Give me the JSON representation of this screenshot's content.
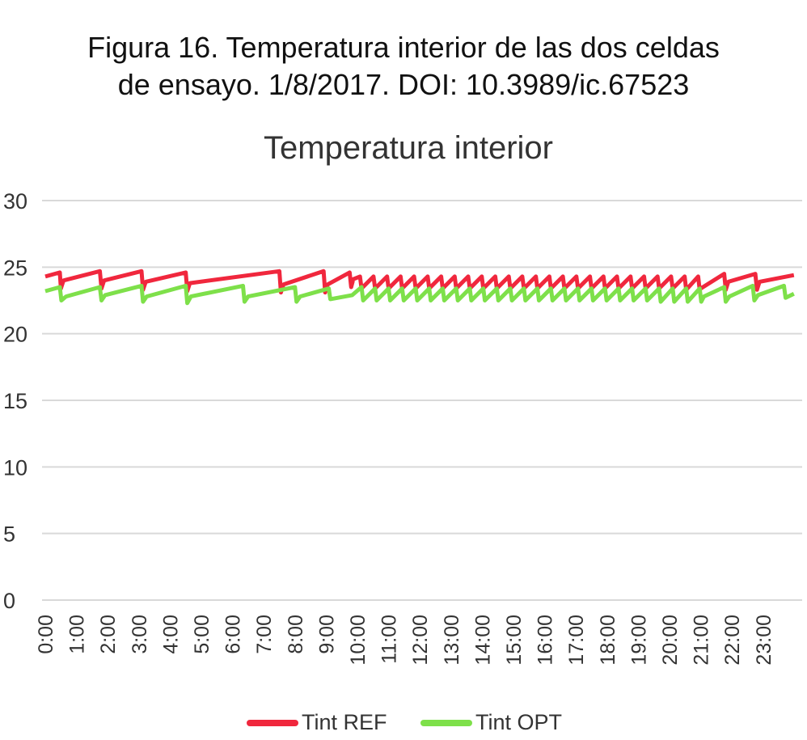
{
  "figure_caption": {
    "line1": "Figura 16. Temperatura interior de las dos celdas",
    "line2": "de ensayo. 1/8/2017. DOI: 10.3989/ic.67523"
  },
  "chart_data": {
    "type": "line",
    "title": "Temperatura interior",
    "xlabel": "",
    "ylabel": "",
    "ylim": [
      0,
      30
    ],
    "yticks": [
      0,
      5,
      10,
      15,
      20,
      25,
      30
    ],
    "xlim": [
      0,
      24
    ],
    "x_ticks": [
      "0:00",
      "1:00",
      "2:00",
      "3:00",
      "4:00",
      "5:00",
      "6:00",
      "7:00",
      "8:00",
      "9:00",
      "10:00",
      "11:00",
      "12:00",
      "13:00",
      "14:00",
      "15:00",
      "16:00",
      "17:00",
      "18:00",
      "19:00",
      "20:00",
      "21:00",
      "22:00",
      "23:00"
    ],
    "grid": "horizontal",
    "legend_position": "bottom",
    "series": [
      {
        "name": "Tint REF",
        "color": "#f0273d",
        "points": [
          [
            "0:00",
            24.3
          ],
          [
            "0:28",
            24.6
          ],
          [
            "0:30",
            23.4
          ],
          [
            "0:35",
            24.0
          ],
          [
            "1:45",
            24.7
          ],
          [
            "1:48",
            23.4
          ],
          [
            "1:53",
            24.0
          ],
          [
            "3:05",
            24.7
          ],
          [
            "3:08",
            23.3
          ],
          [
            "3:13",
            23.9
          ],
          [
            "4:30",
            24.6
          ],
          [
            "4:33",
            23.2
          ],
          [
            "4:38",
            23.8
          ],
          [
            "7:30",
            24.7
          ],
          [
            "7:33",
            23.1
          ],
          [
            "7:38",
            23.7
          ],
          [
            "8:55",
            24.7
          ],
          [
            "8:58",
            23.1
          ],
          [
            "9:03",
            23.7
          ],
          [
            "9:45",
            24.6
          ],
          [
            "9:48",
            23.5
          ],
          [
            "9:52",
            24.1
          ],
          [
            "10:05",
            24.3
          ],
          [
            "10:08",
            23.4
          ],
          [
            "10:31",
            24.3
          ],
          [
            "10:34",
            23.4
          ],
          [
            "10:57",
            24.3
          ],
          [
            "11:00",
            23.4
          ],
          [
            "11:23",
            24.3
          ],
          [
            "11:26",
            23.4
          ],
          [
            "11:49",
            24.3
          ],
          [
            "11:52",
            23.4
          ],
          [
            "12:15",
            24.3
          ],
          [
            "12:18",
            23.4
          ],
          [
            "12:41",
            24.3
          ],
          [
            "12:44",
            23.4
          ],
          [
            "13:07",
            24.3
          ],
          [
            "13:10",
            23.4
          ],
          [
            "13:33",
            24.3
          ],
          [
            "13:36",
            23.4
          ],
          [
            "13:59",
            24.3
          ],
          [
            "14:02",
            23.4
          ],
          [
            "14:25",
            24.3
          ],
          [
            "14:28",
            23.4
          ],
          [
            "14:51",
            24.3
          ],
          [
            "14:54",
            23.4
          ],
          [
            "15:17",
            24.3
          ],
          [
            "15:20",
            23.4
          ],
          [
            "15:43",
            24.3
          ],
          [
            "15:46",
            23.4
          ],
          [
            "16:09",
            24.3
          ],
          [
            "16:12",
            23.4
          ],
          [
            "16:35",
            24.3
          ],
          [
            "16:38",
            23.4
          ],
          [
            "17:01",
            24.3
          ],
          [
            "17:04",
            23.4
          ],
          [
            "17:27",
            24.3
          ],
          [
            "17:30",
            23.4
          ],
          [
            "17:53",
            24.3
          ],
          [
            "17:56",
            23.4
          ],
          [
            "18:19",
            24.3
          ],
          [
            "18:22",
            23.4
          ],
          [
            "18:45",
            24.3
          ],
          [
            "18:48",
            23.4
          ],
          [
            "19:11",
            24.3
          ],
          [
            "19:14",
            23.4
          ],
          [
            "19:37",
            24.3
          ],
          [
            "19:40",
            23.4
          ],
          [
            "20:03",
            24.3
          ],
          [
            "20:06",
            23.4
          ],
          [
            "20:29",
            24.3
          ],
          [
            "20:32",
            23.3
          ],
          [
            "20:55",
            24.3
          ],
          [
            "20:58",
            23.3
          ],
          [
            "21:00",
            23.4
          ],
          [
            "21:45",
            24.5
          ],
          [
            "21:48",
            23.3
          ],
          [
            "21:53",
            23.9
          ],
          [
            "22:45",
            24.5
          ],
          [
            "22:48",
            23.3
          ],
          [
            "22:53",
            23.9
          ],
          [
            "23:59",
            24.4
          ]
        ]
      },
      {
        "name": "Tint OPT",
        "color": "#7ee04a",
        "points": [
          [
            "0:00",
            23.2
          ],
          [
            "0:28",
            23.5
          ],
          [
            "0:31",
            22.5
          ],
          [
            "0:40",
            22.8
          ],
          [
            "1:45",
            23.5
          ],
          [
            "1:48",
            22.5
          ],
          [
            "1:55",
            22.9
          ],
          [
            "3:05",
            23.6
          ],
          [
            "3:08",
            22.4
          ],
          [
            "3:15",
            22.8
          ],
          [
            "4:30",
            23.6
          ],
          [
            "4:33",
            22.3
          ],
          [
            "4:40",
            22.8
          ],
          [
            "6:20",
            23.6
          ],
          [
            "6:23",
            22.4
          ],
          [
            "6:30",
            22.8
          ],
          [
            "8:00",
            23.5
          ],
          [
            "8:03",
            22.4
          ],
          [
            "8:10",
            22.8
          ],
          [
            "9:05",
            23.4
          ],
          [
            "9:08",
            22.6
          ],
          [
            "9:50",
            22.9
          ],
          [
            "10:08",
            23.5
          ],
          [
            "10:11",
            22.5
          ],
          [
            "10:34",
            23.4
          ],
          [
            "10:37",
            22.5
          ],
          [
            "11:00",
            23.4
          ],
          [
            "11:03",
            22.5
          ],
          [
            "11:26",
            23.4
          ],
          [
            "11:29",
            22.5
          ],
          [
            "11:52",
            23.4
          ],
          [
            "11:55",
            22.5
          ],
          [
            "12:18",
            23.4
          ],
          [
            "12:21",
            22.5
          ],
          [
            "12:44",
            23.4
          ],
          [
            "12:47",
            22.5
          ],
          [
            "13:10",
            23.4
          ],
          [
            "13:13",
            22.5
          ],
          [
            "13:36",
            23.4
          ],
          [
            "13:39",
            22.5
          ],
          [
            "14:02",
            23.4
          ],
          [
            "14:05",
            22.5
          ],
          [
            "14:28",
            23.4
          ],
          [
            "14:31",
            22.5
          ],
          [
            "14:54",
            23.4
          ],
          [
            "14:57",
            22.5
          ],
          [
            "15:20",
            23.4
          ],
          [
            "15:23",
            22.5
          ],
          [
            "15:46",
            23.4
          ],
          [
            "15:49",
            22.5
          ],
          [
            "16:12",
            23.4
          ],
          [
            "16:15",
            22.5
          ],
          [
            "16:38",
            23.4
          ],
          [
            "16:41",
            22.5
          ],
          [
            "17:04",
            23.4
          ],
          [
            "17:07",
            22.5
          ],
          [
            "17:30",
            23.4
          ],
          [
            "17:33",
            22.5
          ],
          [
            "17:56",
            23.4
          ],
          [
            "17:59",
            22.5
          ],
          [
            "18:22",
            23.4
          ],
          [
            "18:25",
            22.5
          ],
          [
            "18:48",
            23.4
          ],
          [
            "18:51",
            22.5
          ],
          [
            "19:14",
            23.4
          ],
          [
            "19:17",
            22.5
          ],
          [
            "19:40",
            23.4
          ],
          [
            "19:43",
            22.4
          ],
          [
            "20:06",
            23.4
          ],
          [
            "20:09",
            22.4
          ],
          [
            "20:32",
            23.4
          ],
          [
            "20:35",
            22.4
          ],
          [
            "20:58",
            23.4
          ],
          [
            "21:01",
            22.4
          ],
          [
            "21:06",
            22.8
          ],
          [
            "21:45",
            23.5
          ],
          [
            "21:48",
            22.4
          ],
          [
            "21:55",
            22.8
          ],
          [
            "22:40",
            23.6
          ],
          [
            "22:43",
            22.5
          ],
          [
            "22:50",
            22.9
          ],
          [
            "23:40",
            23.6
          ],
          [
            "23:43",
            22.7
          ],
          [
            "23:59",
            23.0
          ]
        ]
      }
    ]
  }
}
